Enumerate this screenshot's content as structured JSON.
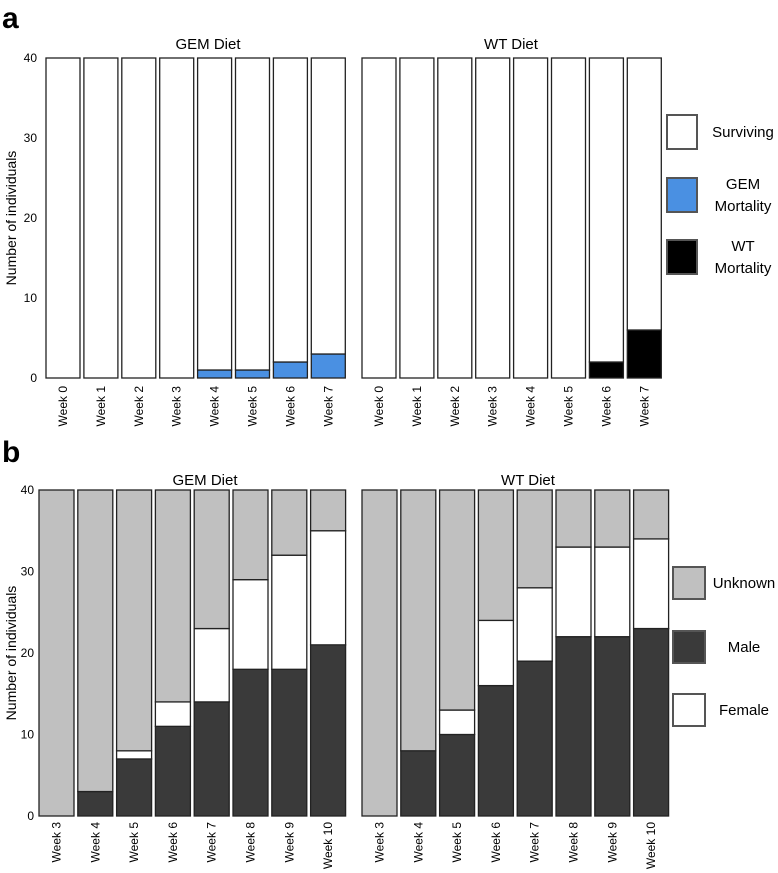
{
  "colors": {
    "surviving": "#ffffff",
    "gem_mortality": "#4a90e2",
    "wt_mortality": "#000000",
    "unknown": "#c0c0c0",
    "male": "#3a3a3a",
    "female": "#ffffff",
    "bar_stroke": "#222222",
    "frame": "#555555"
  },
  "chart_data": [
    {
      "panel": "a",
      "type": "bar",
      "stacked": true,
      "ylabel": "Number of individuals",
      "ylim": [
        0,
        40
      ],
      "yticks": [
        "0",
        "10",
        "20",
        "30",
        "40"
      ],
      "legend": [
        {
          "label_lines": [
            "Surviving"
          ],
          "color_key": "surviving"
        },
        {
          "label_lines": [
            "GEM",
            "Mortality"
          ],
          "color_key": "gem_mortality"
        },
        {
          "label_lines": [
            "WT",
            "Mortality"
          ],
          "color_key": "wt_mortality"
        }
      ],
      "facets": [
        {
          "title": "GEM Diet",
          "categories": [
            "Week 0",
            "Week 1",
            "Week 2",
            "Week 3",
            "Week 4",
            "Week 5",
            "Week 6",
            "Week 7"
          ],
          "series": [
            {
              "color_key": "gem_mortality",
              "values": [
                0,
                0,
                0,
                0,
                1,
                1,
                2,
                3
              ]
            },
            {
              "color_key": "surviving",
              "values": [
                40,
                40,
                40,
                40,
                39,
                39,
                38,
                37
              ]
            }
          ]
        },
        {
          "title": "WT Diet",
          "categories": [
            "Week 0",
            "Week 1",
            "Week 2",
            "Week 3",
            "Week 4",
            "Week 5",
            "Week 6",
            "Week 7"
          ],
          "series": [
            {
              "color_key": "wt_mortality",
              "values": [
                0,
                0,
                0,
                0,
                0,
                0,
                2,
                6
              ]
            },
            {
              "color_key": "surviving",
              "values": [
                40,
                40,
                40,
                40,
                40,
                40,
                38,
                34
              ]
            }
          ]
        }
      ]
    },
    {
      "panel": "b",
      "type": "bar",
      "stacked": true,
      "ylabel": "Number of individuals",
      "ylim": [
        0,
        40
      ],
      "yticks": [
        "0",
        "10",
        "20",
        "30",
        "40"
      ],
      "legend": [
        {
          "label_lines": [
            "Unknown"
          ],
          "color_key": "unknown"
        },
        {
          "label_lines": [
            "Male"
          ],
          "color_key": "male"
        },
        {
          "label_lines": [
            "Female"
          ],
          "color_key": "female"
        }
      ],
      "facets": [
        {
          "title": "GEM Diet",
          "categories": [
            "Week 3",
            "Week 4",
            "Week 5",
            "Week 6",
            "Week 7",
            "Week 8",
            "Week 9",
            "Week 10"
          ],
          "series": [
            {
              "color_key": "male",
              "values": [
                0,
                3,
                7,
                11,
                14,
                18,
                18,
                21
              ]
            },
            {
              "color_key": "female",
              "values": [
                0,
                0,
                1,
                3,
                9,
                11,
                14,
                14
              ]
            },
            {
              "color_key": "unknown",
              "values": [
                40,
                37,
                32,
                26,
                17,
                11,
                8,
                5
              ]
            }
          ]
        },
        {
          "title": "WT Diet",
          "categories": [
            "Week 3",
            "Week 4",
            "Week 5",
            "Week 6",
            "Week 7",
            "Week 8",
            "Week 9",
            "Week 10"
          ],
          "series": [
            {
              "color_key": "male",
              "values": [
                0,
                8,
                10,
                16,
                19,
                22,
                22,
                23
              ]
            },
            {
              "color_key": "female",
              "values": [
                0,
                0,
                3,
                8,
                9,
                11,
                11,
                11
              ]
            },
            {
              "color_key": "unknown",
              "values": [
                40,
                32,
                27,
                16,
                12,
                7,
                7,
                6
              ]
            }
          ]
        }
      ]
    }
  ]
}
